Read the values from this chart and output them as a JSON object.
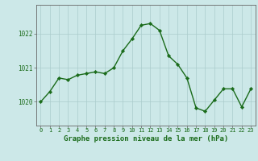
{
  "hours": [
    0,
    1,
    2,
    3,
    4,
    5,
    6,
    7,
    8,
    9,
    10,
    11,
    12,
    13,
    14,
    15,
    16,
    17,
    18,
    19,
    20,
    21,
    22,
    23
  ],
  "pressure": [
    1020.0,
    1020.3,
    1020.7,
    1020.65,
    1020.78,
    1020.83,
    1020.88,
    1020.83,
    1021.0,
    1021.5,
    1021.85,
    1022.25,
    1022.3,
    1022.1,
    1021.35,
    1021.1,
    1020.7,
    1019.82,
    1019.72,
    1020.05,
    1020.38,
    1020.38,
    1019.85,
    1020.38
  ],
  "line_color": "#1a6b1a",
  "marker": "D",
  "markersize": 2.2,
  "linewidth": 1.0,
  "bg_color": "#cce8e8",
  "grid_color": "#aacccc",
  "xlabel": "Graphe pression niveau de la mer (hPa)",
  "xlabel_fontsize": 6.5,
  "yticks": [
    1020,
    1021,
    1022
  ],
  "ylim": [
    1019.3,
    1022.85
  ],
  "xlim": [
    -0.5,
    23.5
  ],
  "xtick_fontsize": 5.0,
  "ytick_fontsize": 5.5,
  "tick_color": "#1a6b1a",
  "axis_color": "#666666"
}
